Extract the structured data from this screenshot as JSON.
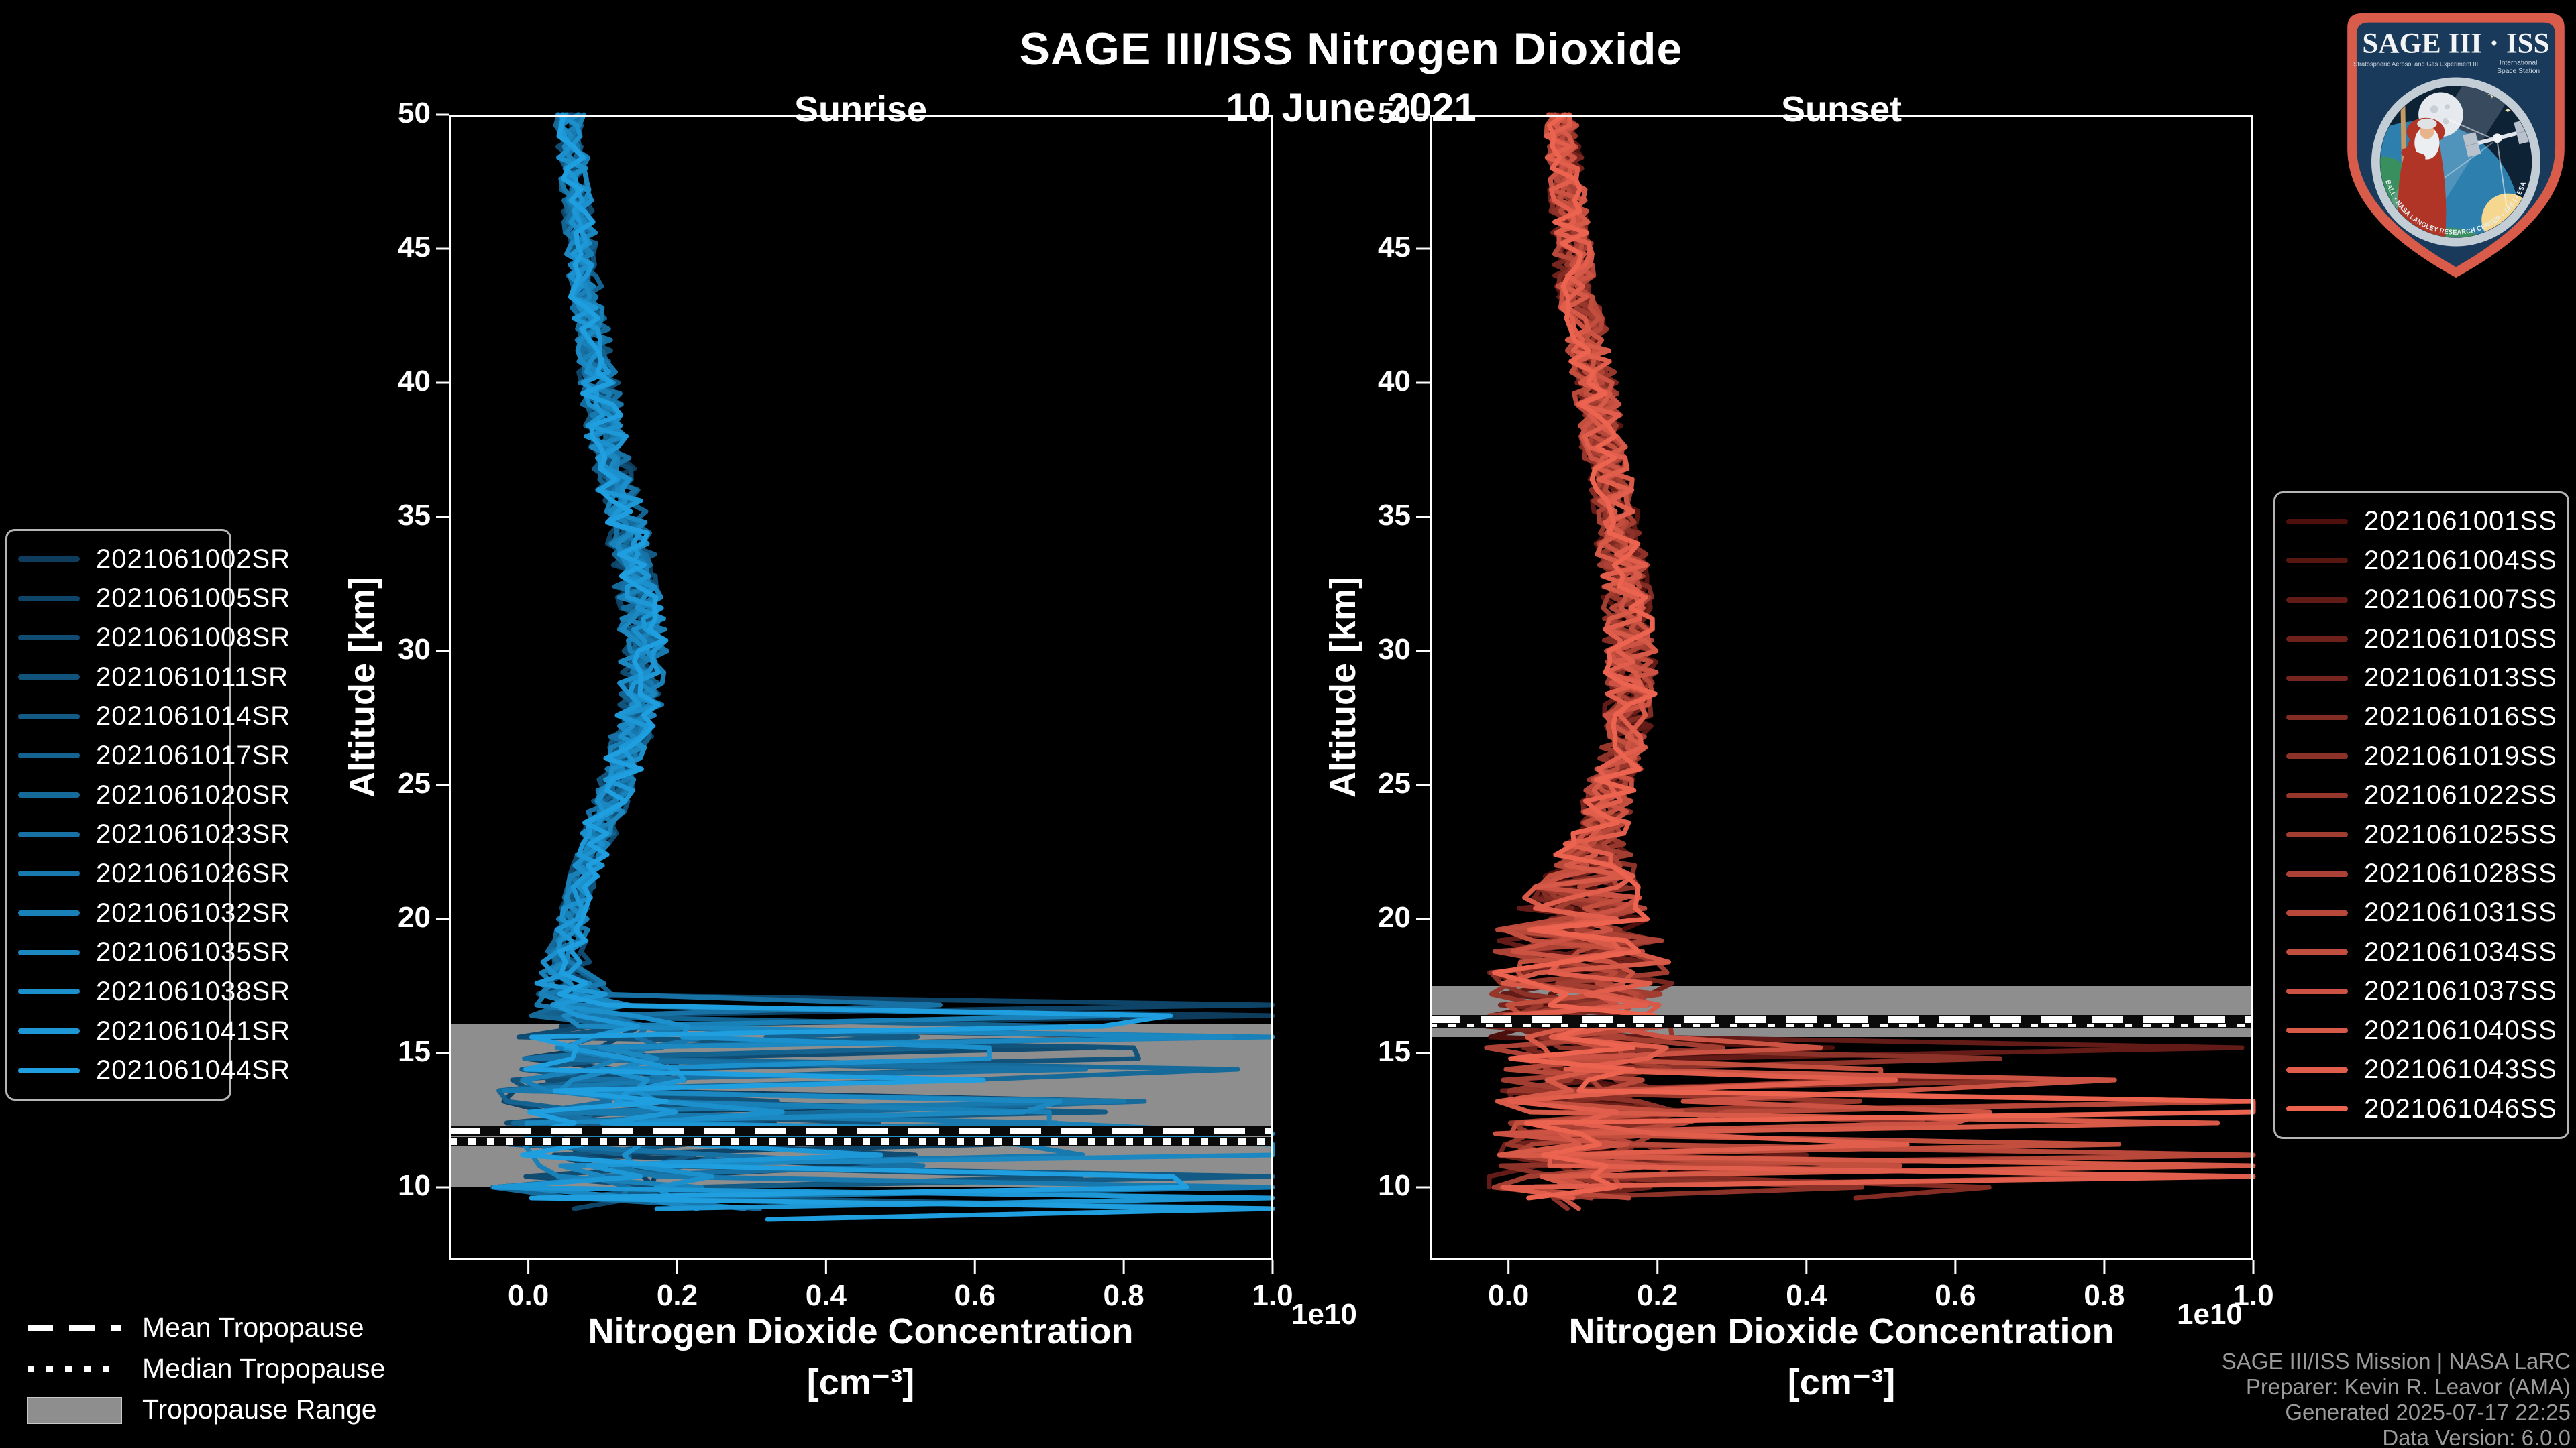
{
  "header": {
    "title": "SAGE III/ISS Nitrogen Dioxide",
    "date": "10 June 2021"
  },
  "chart_data": {
    "type": "line",
    "title": "SAGE III/ISS Nitrogen Dioxide",
    "subtitle": "10 June 2021",
    "legend_position": "outside-left-and-right",
    "grid": false,
    "panels": [
      {
        "id": "sunrise",
        "title": "Sunrise",
        "ylabel": "Altitude [km]",
        "xlabel_line1": "Nitrogen Dioxide Concentration",
        "xlabel_line2": "[cm⁻³]",
        "x_offset_text": "1e10",
        "xlim": [
          -0.106,
          1.0
        ],
        "ylim": [
          7.275,
          50
        ],
        "xticks": [
          0.0,
          0.2,
          0.4,
          0.6,
          0.8,
          1.0
        ],
        "yticks": [
          50,
          45,
          40,
          35,
          30,
          25,
          20,
          15,
          10
        ],
        "x_units": "1e10 cm^-3",
        "line_color_ramp": [
          "#0d3c5d",
          "#1f9fe0"
        ],
        "band_color": "#8e8e8e",
        "tropopause": {
          "mean_km": 12.1,
          "median_km": 11.7,
          "range_km": [
            10.0,
            16.1
          ]
        },
        "profile": {
          "altitudes": [
            50,
            47,
            44,
            41,
            38,
            35,
            32,
            30,
            28,
            26,
            24,
            22,
            20,
            18.5,
            17.5,
            16,
            14,
            12,
            10,
            9
          ],
          "values": [
            0.055,
            0.065,
            0.075,
            0.09,
            0.105,
            0.13,
            0.15,
            0.155,
            0.15,
            0.13,
            0.105,
            0.08,
            0.06,
            0.05,
            0.06,
            0.08,
            0.09,
            0.1,
            0.12,
            0.25
          ],
          "noise_amp": [
            0.02,
            0.02,
            0.022,
            0.025,
            0.028,
            0.03,
            0.032,
            0.032,
            0.03,
            0.028,
            0.025,
            0.022,
            0.02,
            0.03,
            0.05,
            0.09,
            0.13,
            0.15,
            0.17,
            0.2
          ]
        },
        "spikes": {
          "below_km": 17.0,
          "probability": 0.17,
          "min": 0.2,
          "max": 1.15
        },
        "forced_spikes": [
          {
            "series": 8,
            "alt": 13.2,
            "value": 0.8
          },
          {
            "series": 9,
            "alt": 12.6,
            "value": 0.7
          },
          {
            "series": 10,
            "alt": 11.4,
            "value": 1.05
          },
          {
            "series": 11,
            "alt": 15.0,
            "value": 0.62
          },
          {
            "series": 12,
            "alt": 9.6,
            "value": 1.1
          },
          {
            "series": 13,
            "alt": 9.2,
            "value": 1.12
          }
        ],
        "series": [
          {
            "name": "2021061002SR",
            "seed": 11,
            "bottom_km": 9.4
          },
          {
            "name": "2021061005SR",
            "seed": 22,
            "bottom_km": 9.0
          },
          {
            "name": "2021061008SR",
            "seed": 33,
            "bottom_km": 9.6
          },
          {
            "name": "2021061011SR",
            "seed": 44,
            "bottom_km": 8.9
          },
          {
            "name": "2021061014SR",
            "seed": 55,
            "bottom_km": 9.3
          },
          {
            "name": "2021061017SR",
            "seed": 66,
            "bottom_km": 9.8
          },
          {
            "name": "2021061020SR",
            "seed": 77,
            "bottom_km": 9.1
          },
          {
            "name": "2021061023SR",
            "seed": 88,
            "bottom_km": 9.5
          },
          {
            "name": "2021061026SR",
            "seed": 99,
            "bottom_km": 9.0
          },
          {
            "name": "2021061032SR",
            "seed": 111,
            "bottom_km": 9.7
          },
          {
            "name": "2021061035SR",
            "seed": 123,
            "bottom_km": 9.2
          },
          {
            "name": "2021061038SR",
            "seed": 135,
            "bottom_km": 9.4
          },
          {
            "name": "2021061041SR",
            "seed": 147,
            "bottom_km": 9.0
          },
          {
            "name": "2021061044SR",
            "seed": 159,
            "bottom_km": 8.8
          }
        ]
      },
      {
        "id": "sunset",
        "title": "Sunset",
        "ylabel": "Altitude [km]",
        "xlabel_line1": "Nitrogen Dioxide Concentration",
        "xlabel_line2": "[cm⁻³]",
        "x_offset_text": "1e10",
        "xlim": [
          -0.106,
          1.0
        ],
        "ylim": [
          7.275,
          50
        ],
        "xticks": [
          0.0,
          0.2,
          0.4,
          0.6,
          0.8,
          1.0
        ],
        "yticks": [
          50,
          45,
          40,
          35,
          30,
          25,
          20,
          15,
          10
        ],
        "x_units": "1e10 cm^-3",
        "line_color_ramp": [
          "#4d100d",
          "#ec6450"
        ],
        "band_color": "#8e8e8e",
        "tropopause": {
          "mean_km": 16.25,
          "median_km": 16.1,
          "range_km": [
            15.6,
            17.5
          ]
        },
        "profile": {
          "altitudes": [
            50,
            47,
            44,
            41,
            38,
            35,
            32,
            29,
            27,
            25,
            23,
            21,
            19.5,
            18,
            16.5,
            15,
            13,
            11,
            10,
            9.5
          ],
          "values": [
            0.07,
            0.08,
            0.09,
            0.11,
            0.125,
            0.145,
            0.16,
            0.165,
            0.16,
            0.14,
            0.12,
            0.1,
            0.09,
            0.1,
            0.1,
            0.1,
            0.12,
            0.1,
            0.09,
            0.08
          ],
          "noise_amp": [
            0.022,
            0.025,
            0.028,
            0.03,
            0.03,
            0.032,
            0.035,
            0.035,
            0.033,
            0.035,
            0.04,
            0.08,
            0.11,
            0.13,
            0.13,
            0.13,
            0.14,
            0.13,
            0.12,
            0.1
          ]
        },
        "spikes": {
          "below_km": 15.5,
          "probability": 0.12,
          "min": 0.2,
          "max": 1.15
        },
        "forced_spikes": [
          {
            "series": 11,
            "alt": 14.2,
            "value": 0.5
          },
          {
            "series": 12,
            "alt": 12.3,
            "value": 0.6
          },
          {
            "series": 13,
            "alt": 10.9,
            "value": 1.08
          },
          {
            "series": 14,
            "alt": 10.5,
            "value": 1.1
          },
          {
            "series": 15,
            "alt": 13.0,
            "value": 1.05
          }
        ],
        "series": [
          {
            "name": "2021061001SS",
            "seed": 201,
            "bottom_km": 10.0
          },
          {
            "name": "2021061004SS",
            "seed": 208,
            "bottom_km": 9.4
          },
          {
            "name": "2021061007SS",
            "seed": 215,
            "bottom_km": 9.8
          },
          {
            "name": "2021061010SS",
            "seed": 222,
            "bottom_km": 9.3
          },
          {
            "name": "2021061013SS",
            "seed": 229,
            "bottom_km": 10.1
          },
          {
            "name": "2021061016SS",
            "seed": 236,
            "bottom_km": 9.6
          },
          {
            "name": "2021061019SS",
            "seed": 243,
            "bottom_km": 9.2
          },
          {
            "name": "2021061022SS",
            "seed": 250,
            "bottom_km": 9.9
          },
          {
            "name": "2021061025SS",
            "seed": 257,
            "bottom_km": 9.5
          },
          {
            "name": "2021061028SS",
            "seed": 264,
            "bottom_km": 10.2
          },
          {
            "name": "2021061031SS",
            "seed": 271,
            "bottom_km": 9.3
          },
          {
            "name": "2021061034SS",
            "seed": 278,
            "bottom_km": 9.7
          },
          {
            "name": "2021061037SS",
            "seed": 285,
            "bottom_km": 9.2
          },
          {
            "name": "2021061040SS",
            "seed": 292,
            "bottom_km": 10.0
          },
          {
            "name": "2021061043SS",
            "seed": 299,
            "bottom_km": 9.4
          },
          {
            "name": "2021061046SS",
            "seed": 306,
            "bottom_km": 9.3
          }
        ]
      }
    ]
  },
  "tropopause_legend": {
    "mean": "Mean Tropopause",
    "median": "Median Tropopause",
    "range": "Tropopause Range"
  },
  "footer": {
    "lines": [
      "SAGE III/ISS Mission | NASA LaRC",
      "Preparer: Kevin R. Leavor (AMA)",
      "Generated 2025-07-17 22:25",
      "Data Version: 6.0.0"
    ]
  },
  "logo": {
    "title": "SAGE III · ISS",
    "subtitle_left": "Stratospheric Aerosol and Gas Experiment III",
    "subtitle_right_1": "International",
    "subtitle_right_2": "Space Station",
    "ring_text": "BALL • NASA LANGLEY RESEARCH CENTER • TAS-I • ESA",
    "colors": {
      "border": "#d85c49",
      "field": "#1a3a5c",
      "ring": "#c3cdd6",
      "space": "#0e2236"
    }
  }
}
